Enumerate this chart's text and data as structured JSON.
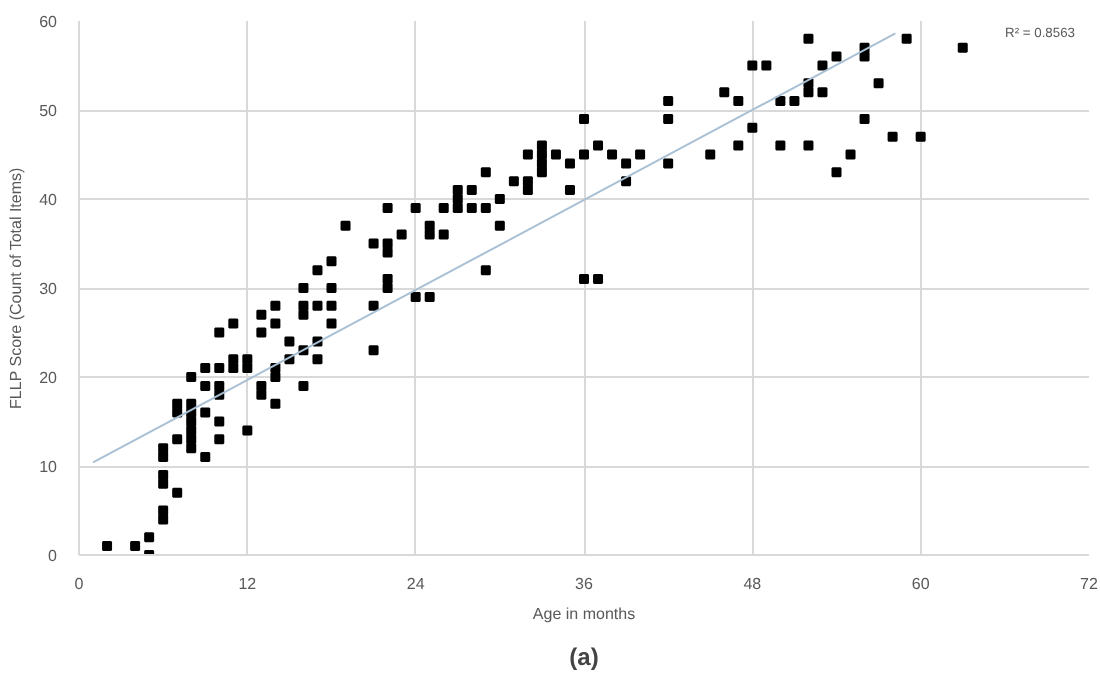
{
  "chart_data": {
    "type": "scatter",
    "xlabel": "Age in months",
    "ylabel": "FLLP Score (Count of Total Items)",
    "annotations": [
      "R² = 0.8563",
      "(a)"
    ],
    "xlim": [
      0,
      72
    ],
    "xticks": [
      0,
      12,
      24,
      36,
      48,
      60,
      72
    ],
    "ylim": [
      0,
      60
    ],
    "yticks": [
      0,
      10,
      20,
      30,
      40,
      50,
      60
    ],
    "grid": true,
    "marker": "square",
    "series": [
      {
        "color": "#000000",
        "x": [
          2,
          4,
          5,
          5,
          6,
          6,
          6,
          6,
          6,
          6,
          7,
          7,
          7,
          7,
          8,
          8,
          8,
          8,
          8,
          8,
          8,
          9,
          9,
          9,
          9,
          10,
          10,
          10,
          10,
          10,
          10,
          11,
          11,
          11,
          12,
          12,
          12,
          13,
          13,
          13,
          13,
          14,
          14,
          14,
          14,
          14,
          15,
          15,
          16,
          16,
          16,
          16,
          16,
          17,
          17,
          17,
          18,
          18,
          18,
          21,
          21,
          22,
          24,
          17,
          18,
          19,
          21,
          22,
          22,
          22,
          22,
          23,
          24,
          25,
          25,
          25,
          26,
          26,
          27,
          27,
          27,
          28,
          28,
          29,
          29,
          29,
          30,
          30,
          31,
          32,
          32,
          32,
          33,
          33,
          33,
          33,
          34,
          35,
          35,
          36,
          36,
          36,
          37,
          37,
          38,
          39,
          39,
          40,
          42,
          42,
          42,
          45,
          46,
          47,
          47,
          48,
          48,
          52,
          59,
          63,
          49,
          54,
          56,
          56,
          53,
          52,
          52,
          53,
          57,
          50,
          51,
          50,
          52,
          56,
          58,
          60,
          55,
          54
        ],
        "values": [
          1,
          1,
          2,
          0,
          12,
          11,
          9,
          8,
          5,
          4,
          7,
          13,
          17,
          16,
          20,
          17,
          16,
          15,
          14,
          13,
          12,
          21,
          19,
          16,
          11,
          25,
          21,
          19,
          18,
          15,
          13,
          26,
          22,
          21,
          22,
          21,
          14,
          27,
          25,
          19,
          18,
          28,
          26,
          21,
          20,
          17,
          24,
          22,
          30,
          28,
          27,
          23,
          19,
          28,
          24,
          22,
          30,
          28,
          26,
          28,
          23,
          30,
          29,
          32,
          33,
          37,
          35,
          39,
          35,
          34,
          31,
          36,
          39,
          29,
          37,
          36,
          39,
          36,
          41,
          40,
          39,
          41,
          39,
          43,
          39,
          32,
          40,
          37,
          42,
          45,
          42,
          41,
          46,
          45,
          44,
          43,
          45,
          44,
          41,
          49,
          45,
          31,
          46,
          31,
          45,
          44,
          42,
          45,
          51,
          49,
          44,
          45,
          52,
          51,
          46,
          55,
          48,
          58,
          58,
          57,
          55,
          56,
          57,
          56,
          55,
          53,
          52,
          52,
          53,
          51,
          51,
          46,
          46,
          49,
          47,
          47,
          45,
          43
        ]
      },
      {
        "type": "line",
        "color": "#a9c0d4",
        "marker": "none",
        "x": [
          1,
          58.2
        ],
        "values": [
          10.4,
          58.6
        ]
      }
    ]
  }
}
